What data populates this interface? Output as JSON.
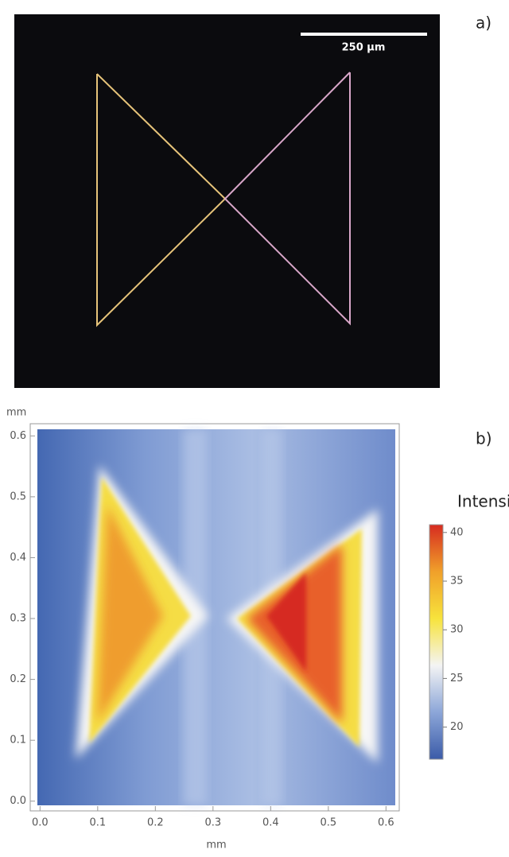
{
  "panel_a": {
    "label": "a)",
    "scale_bar": "250 µm"
  },
  "chart_data": {
    "type": "heatmap",
    "label": "b)",
    "xlabel": "mm",
    "ylabel": "mm",
    "xlim": [
      -0.017,
      0.623
    ],
    "xticks": [
      {
        "value": 0,
        "label": "0.0"
      },
      0.1,
      0.2,
      0.3,
      0.4,
      0.5,
      0.6
    ],
    "ylim": [
      -0.016,
      0.62
    ],
    "yticks": [
      {
        "value": 0,
        "label": "0.0"
      },
      0.1,
      0.2,
      0.3,
      0.4,
      0.5,
      0.6
    ],
    "colorbar": {
      "title": "Intensité",
      "lim": [
        16.7,
        40.8
      ],
      "ticks": [
        20,
        25,
        30,
        35,
        40
      ],
      "colors": [
        "#3b5ba8",
        "#8ca6d8",
        "#f4f4f4",
        "#f7e33c",
        "#f0a02a",
        "#d62b20"
      ]
    }
  }
}
